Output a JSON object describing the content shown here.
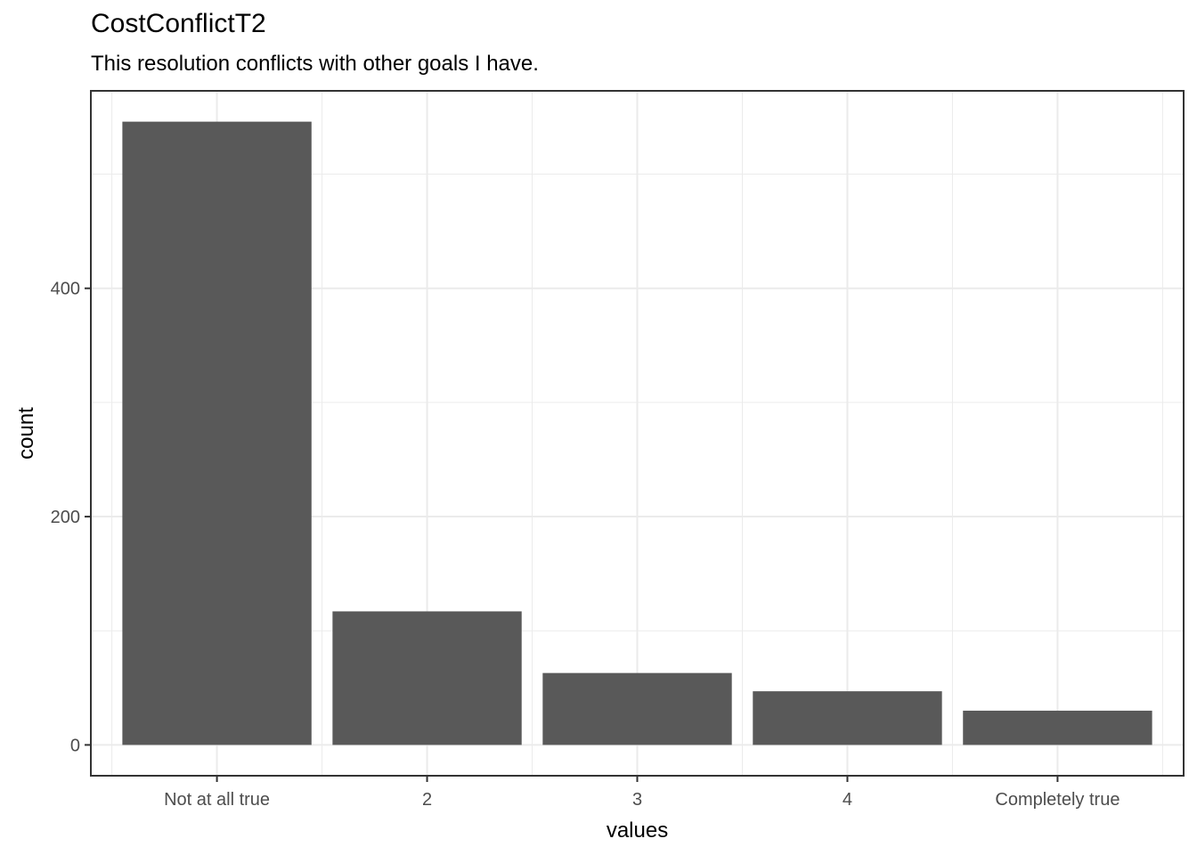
{
  "chart_data": {
    "type": "bar",
    "title": "CostConflictT2",
    "subtitle": "This resolution conflicts with other goals I have.",
    "xlabel": "values",
    "ylabel": "count",
    "categories": [
      "Not at all true",
      "2",
      "3",
      "4",
      "Completely true"
    ],
    "values": [
      546,
      117,
      63,
      47,
      30
    ],
    "ylim": [
      -27,
      573
    ],
    "yticks": [
      0,
      200,
      400
    ],
    "ytick_labels": [
      "0",
      "200",
      "400"
    ],
    "grid": true,
    "bar_color": "#595959",
    "grid_color": "#ebebeb",
    "border_color": "#333333"
  }
}
